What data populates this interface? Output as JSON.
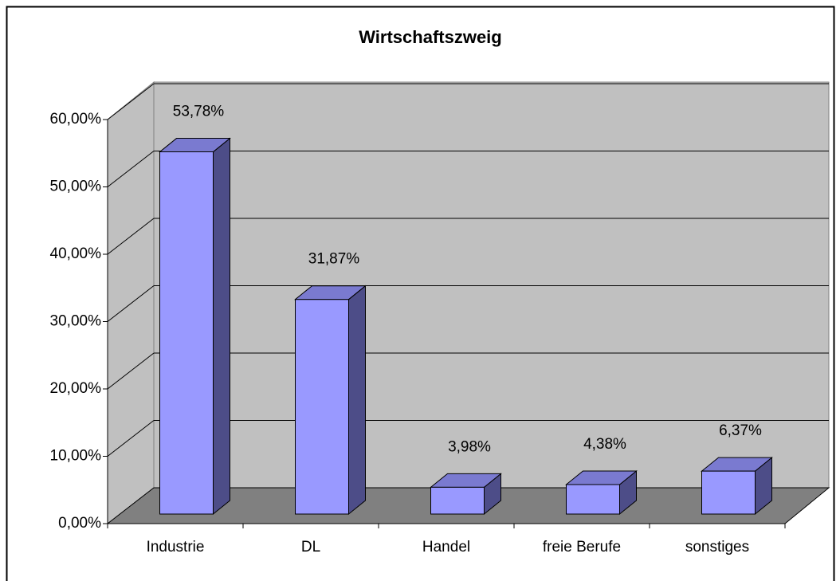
{
  "chart_data": {
    "type": "bar3d",
    "title": "Wirtschaftszweig",
    "categories": [
      "Industrie",
      "DL",
      "Handel",
      "freie Berufe",
      "sonstiges"
    ],
    "values": [
      53.78,
      31.87,
      3.98,
      4.38,
      6.37
    ],
    "value_labels": [
      "53,78%",
      "31,87%",
      "3,98%",
      "4,38%",
      "6,37%"
    ],
    "color": "#9999ff",
    "ylim": [
      0,
      60
    ],
    "yticks": [
      {
        "value": 0,
        "label": "0,00%"
      },
      {
        "value": 10,
        "label": "10,00%"
      },
      {
        "value": 20,
        "label": "20,00%"
      },
      {
        "value": 30,
        "label": "30,00%"
      },
      {
        "value": 40,
        "label": "40,00%"
      },
      {
        "value": 50,
        "label": "50,00%"
      },
      {
        "value": 60,
        "label": "60,00%"
      }
    ],
    "grid": true
  }
}
